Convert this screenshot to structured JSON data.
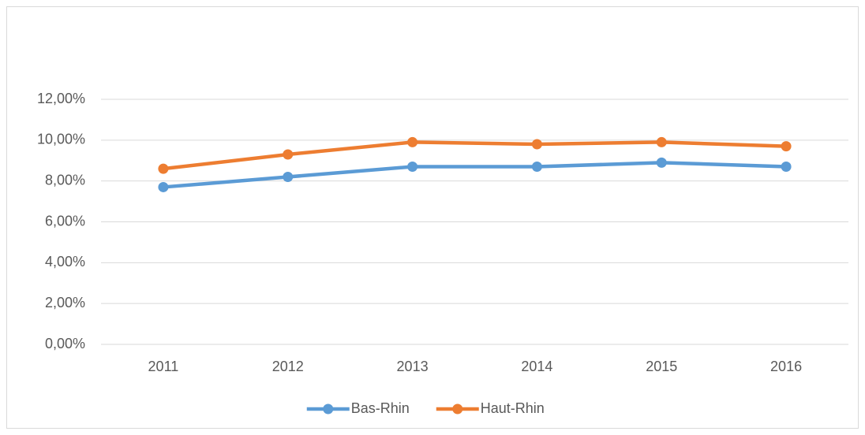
{
  "chart_data": {
    "type": "line",
    "categories": [
      "2011",
      "2012",
      "2013",
      "2014",
      "2015",
      "2016"
    ],
    "series": [
      {
        "name": "Bas-Rhin",
        "color": "#5b9bd5",
        "values": [
          7.7,
          8.2,
          8.7,
          8.7,
          8.9,
          8.7
        ]
      },
      {
        "name": "Haut-Rhin",
        "color": "#ed7d31",
        "values": [
          8.6,
          9.3,
          9.9,
          9.8,
          9.9,
          9.7
        ]
      }
    ],
    "ylim": [
      0,
      12
    ],
    "yticks": [
      {
        "value": 0,
        "label": "0,00%"
      },
      {
        "value": 2,
        "label": "2,00%"
      },
      {
        "value": 4,
        "label": "4,00%"
      },
      {
        "value": 6,
        "label": "6,00%"
      },
      {
        "value": 8,
        "label": "8,00%"
      },
      {
        "value": 10,
        "label": "10,00%"
      },
      {
        "value": 12,
        "label": "12,00%"
      }
    ],
    "grid": true,
    "legend": "bottom"
  }
}
